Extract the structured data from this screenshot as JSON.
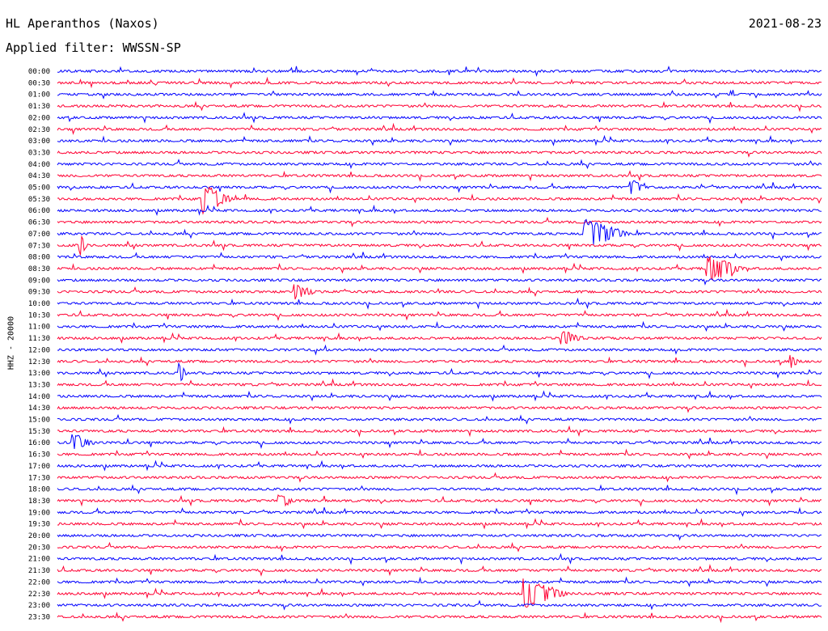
{
  "header": {
    "station": "HL Aperanthos (Naxos)",
    "date": "2021-08-23",
    "filter": "Applied filter: WWSSN-SP"
  },
  "chart_data": {
    "type": "line",
    "title": "HL Aperanthos (Naxos)",
    "ylabel": "HHZ - 20000",
    "xlabel": "",
    "row_labels": [
      "00:00",
      "00:30",
      "01:00",
      "01:30",
      "02:00",
      "02:30",
      "03:00",
      "03:30",
      "04:00",
      "04:30",
      "05:00",
      "05:30",
      "06:00",
      "06:30",
      "07:00",
      "07:30",
      "08:00",
      "08:30",
      "09:00",
      "09:30",
      "10:00",
      "10:30",
      "11:00",
      "11:30",
      "12:00",
      "12:30",
      "13:00",
      "13:30",
      "14:00",
      "14:30",
      "15:00",
      "15:30",
      "16:00",
      "16:30",
      "17:00",
      "17:30",
      "18:00",
      "18:30",
      "19:00",
      "19:30",
      "20:00",
      "20:30",
      "21:00",
      "21:30",
      "22:00",
      "22:30",
      "23:00",
      "23:30"
    ],
    "row_colors": [
      "#0000ff",
      "#ff0033"
    ],
    "grid": false,
    "events": [
      {
        "row": "05:30",
        "t": 0.19,
        "amp": 1.0,
        "dur": 0.04
      },
      {
        "row": "07:00",
        "t": 0.69,
        "amp": 1.0,
        "dur": 0.06
      },
      {
        "row": "07:30",
        "t": 0.03,
        "amp": 0.7,
        "dur": 0.01
      },
      {
        "row": "08:30",
        "t": 0.85,
        "amp": 0.9,
        "dur": 0.05
      },
      {
        "row": "09:30",
        "t": 0.31,
        "amp": 0.5,
        "dur": 0.03
      },
      {
        "row": "11:30",
        "t": 0.66,
        "amp": 0.5,
        "dur": 0.03
      },
      {
        "row": "13:00",
        "t": 0.16,
        "amp": 0.6,
        "dur": 0.01
      },
      {
        "row": "16:00",
        "t": 0.02,
        "amp": 0.6,
        "dur": 0.03
      },
      {
        "row": "18:30",
        "t": 0.29,
        "amp": 0.5,
        "dur": 0.02
      },
      {
        "row": "22:30",
        "t": 0.61,
        "amp": 1.0,
        "dur": 0.06
      },
      {
        "row": "05:00",
        "t": 0.75,
        "amp": 0.6,
        "dur": 0.02
      },
      {
        "row": "12:30",
        "t": 0.96,
        "amp": 0.5,
        "dur": 0.01
      }
    ]
  }
}
